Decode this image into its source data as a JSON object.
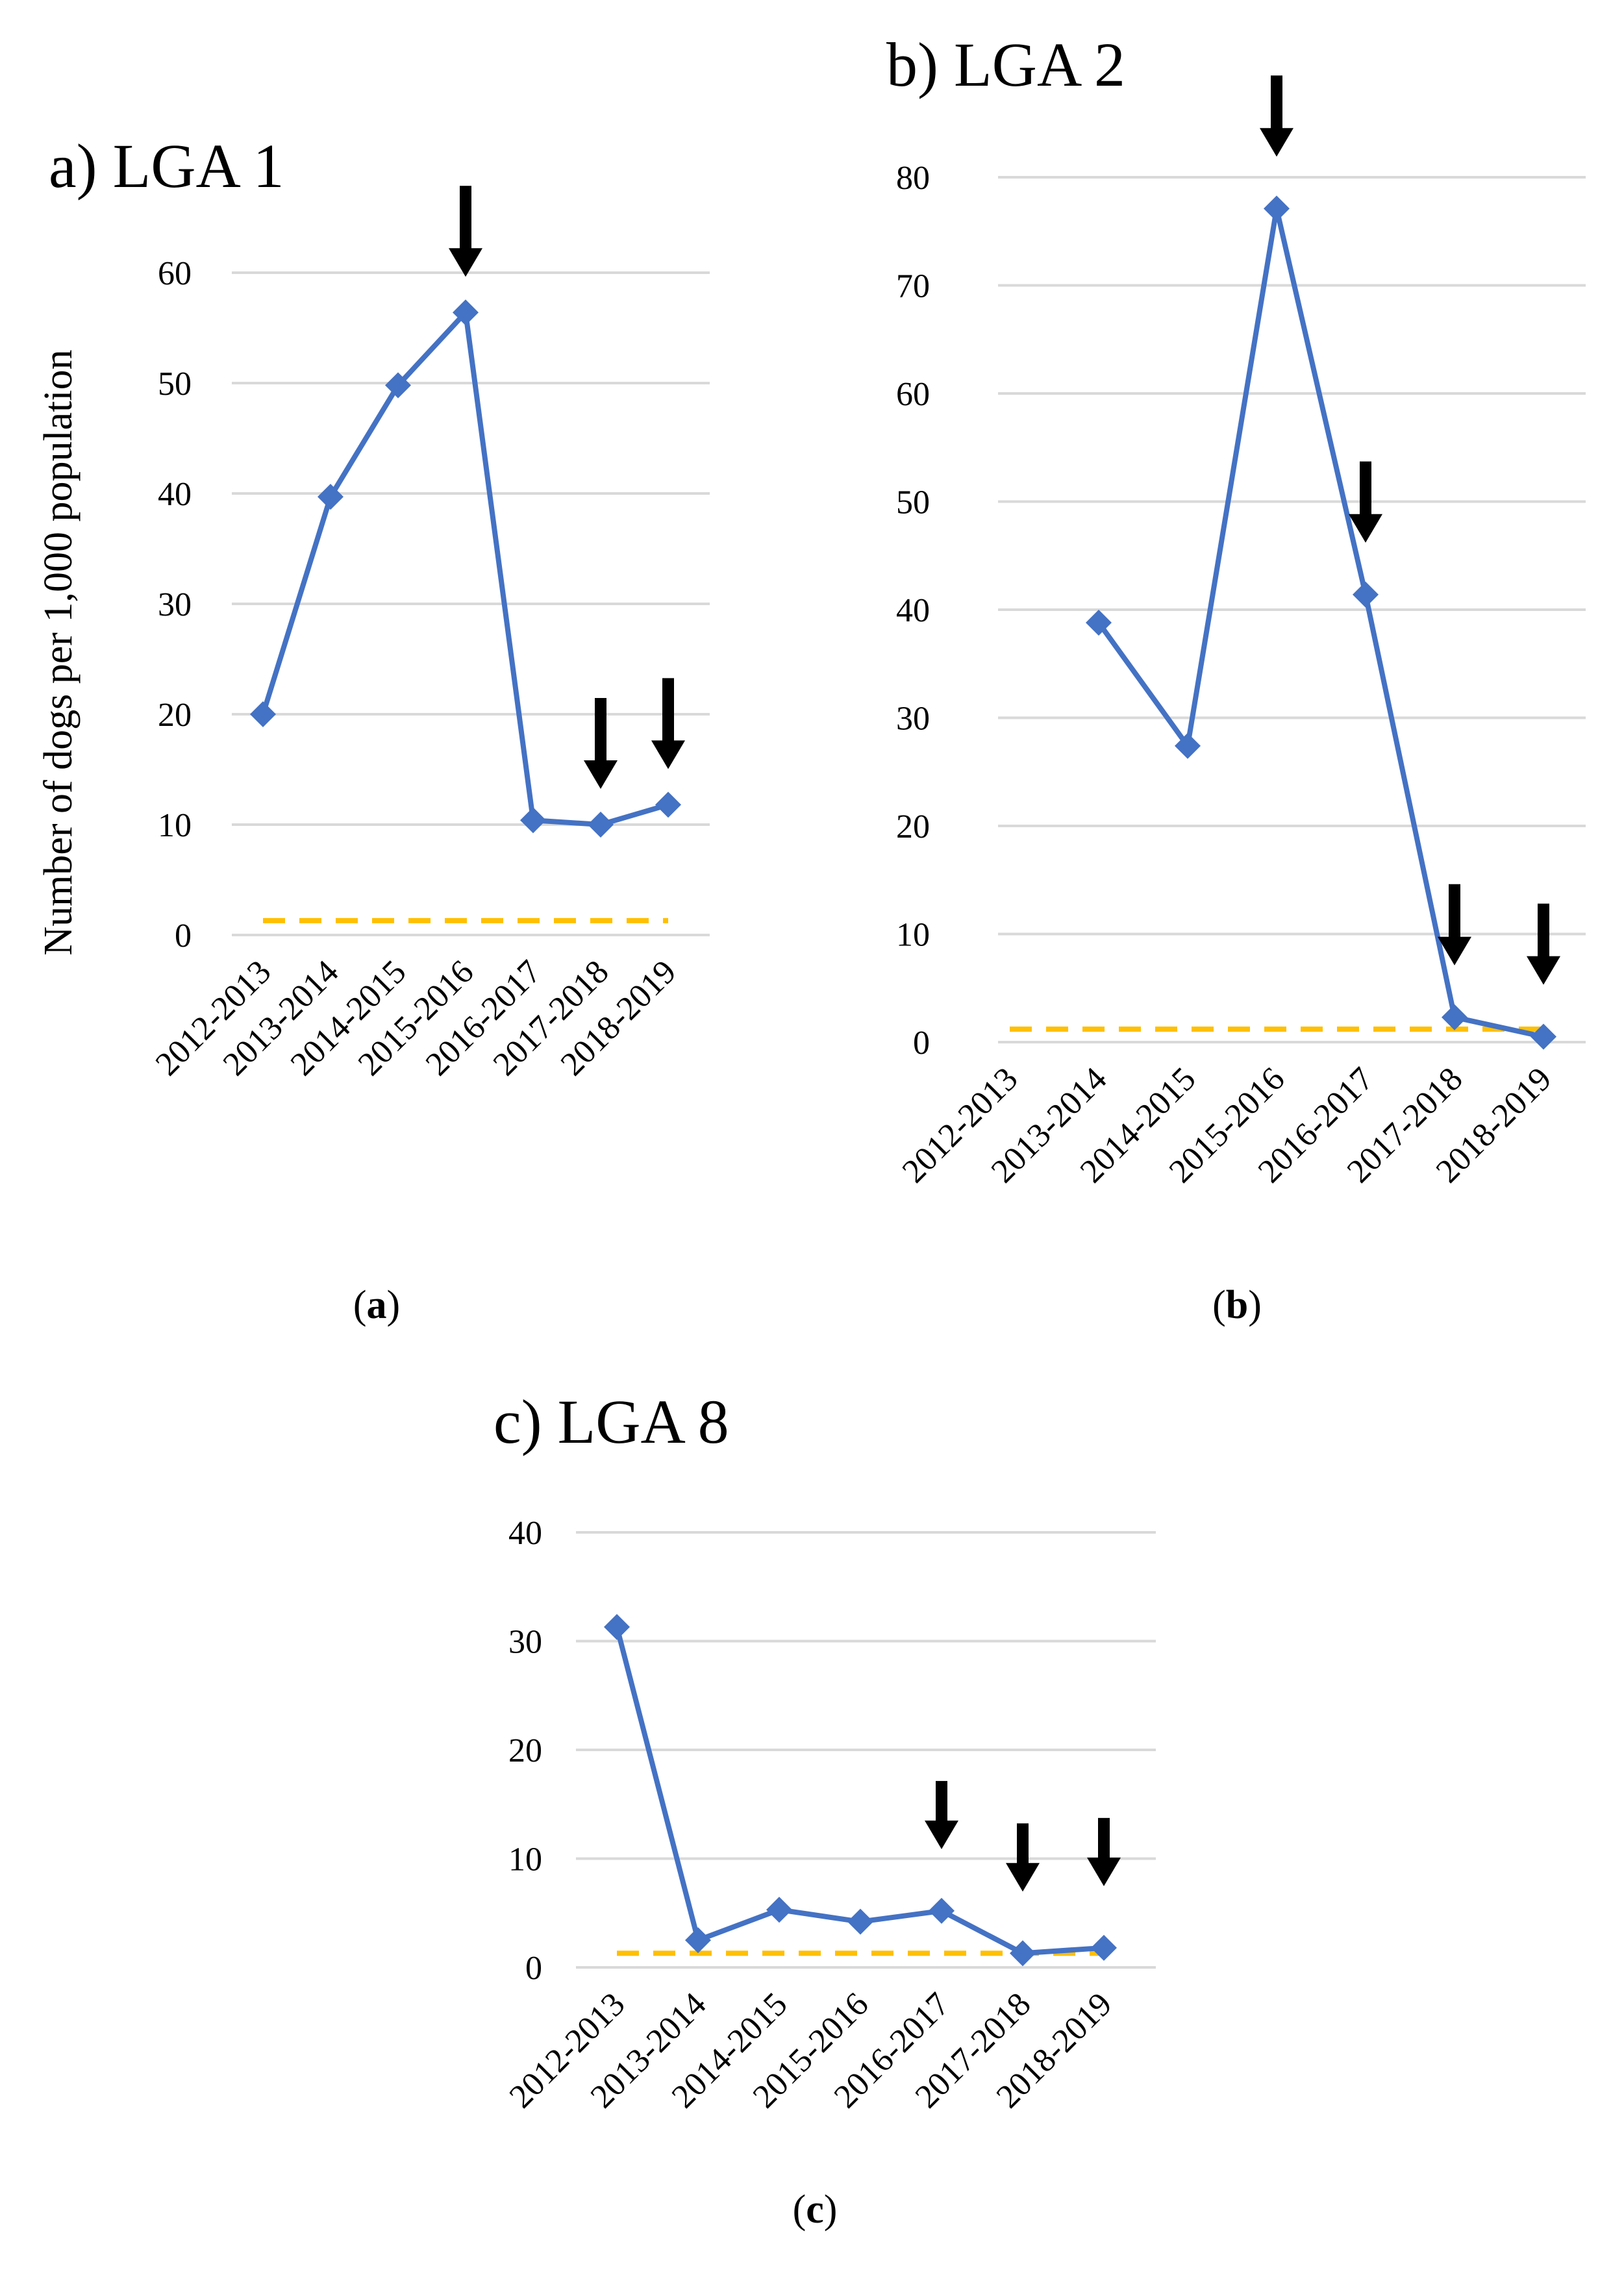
{
  "figure": {
    "y_axis_title": "Number of dogs per 1,000 population",
    "colors": {
      "line": "#4472C4",
      "threshold": "#FFC000",
      "grid": "#D9D9D9",
      "arrow": "#000000"
    }
  },
  "chart_data": [
    {
      "type": "line",
      "title": "a) LGA 1",
      "caption_letter": "a",
      "categories": [
        "2012-2013",
        "2013-2014",
        "2014-2015",
        "2015-2016",
        "2016-2017",
        "2017-2018",
        "2018-2019"
      ],
      "values": [
        20,
        39.7,
        49.8,
        56.4,
        10.4,
        10.0,
        11.8
      ],
      "threshold": 1.3,
      "yticks": [
        0,
        10,
        20,
        30,
        40,
        50,
        60
      ],
      "ylim": [
        0,
        60
      ],
      "ylabel": "Number of dogs per 1,000 population",
      "arrows": [
        "2015-2016",
        "2017-2018",
        "2018-2019"
      ],
      "grid": true
    },
    {
      "type": "line",
      "title": "b) LGA 2",
      "caption_letter": "b",
      "categories": [
        "2012-2013",
        "2013-2014",
        "2014-2015",
        "2015-2016",
        "2016-2017",
        "2017-2018",
        "2018-2019"
      ],
      "values": [
        null,
        38.8,
        27.4,
        77.1,
        41.4,
        2.3,
        0.5
      ],
      "threshold": 1.2,
      "yticks": [
        0,
        10,
        20,
        30,
        40,
        50,
        60,
        70,
        80
      ],
      "ylim": [
        0,
        80
      ],
      "ylabel": "",
      "arrows": [
        "2015-2016",
        "2016-2017",
        "2017-2018",
        "2018-2019"
      ],
      "grid": true
    },
    {
      "type": "line",
      "title": "c) LGA 8",
      "caption_letter": "c",
      "categories": [
        "2012-2013",
        "2013-2014",
        "2014-2015",
        "2015-2016",
        "2016-2017",
        "2017-2018",
        "2018-2019"
      ],
      "values": [
        31.3,
        2.5,
        5.3,
        4.2,
        5.2,
        1.3,
        1.8
      ],
      "threshold": 1.3,
      "yticks": [
        0,
        10,
        20,
        30,
        40
      ],
      "ylim": [
        0,
        40
      ],
      "ylabel": "",
      "arrows": [
        "2016-2017",
        "2017-2018",
        "2018-2019"
      ],
      "grid": true
    }
  ]
}
